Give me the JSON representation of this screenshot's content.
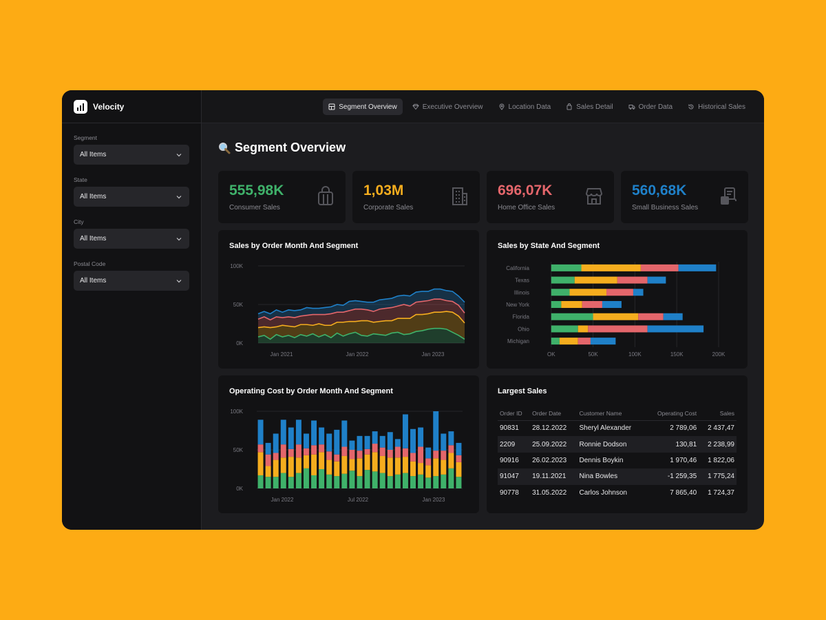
{
  "app": {
    "name": "Velocity"
  },
  "sidebar": {
    "filters": [
      {
        "label": "Segment",
        "value": "All Items"
      },
      {
        "label": "State",
        "value": "All Items"
      },
      {
        "label": "City",
        "value": "All Items"
      },
      {
        "label": "Postal Code",
        "value": "All Items"
      }
    ]
  },
  "nav": {
    "tabs": [
      {
        "label": "Segment Overview",
        "icon": "layout-icon",
        "active": true
      },
      {
        "label": "Executive Overview",
        "icon": "diamond-icon",
        "active": false
      },
      {
        "label": "Location Data",
        "icon": "map-pin-icon",
        "active": false
      },
      {
        "label": "Sales Detail",
        "icon": "shopping-bag-icon",
        "active": false
      },
      {
        "label": "Order Data",
        "icon": "truck-icon",
        "active": false
      },
      {
        "label": "Historical Sales",
        "icon": "history-icon",
        "active": false
      }
    ]
  },
  "page": {
    "title": "Segment Overview",
    "icon": "magnifier-icon"
  },
  "kpis": [
    {
      "value": "555,98K",
      "label": "Consumer Sales",
      "color": "#3fb16a",
      "icon": "shopping-bag-icon"
    },
    {
      "value": "1,03M",
      "label": "Corporate Sales",
      "color": "#f5ad1e",
      "icon": "building-icon"
    },
    {
      "value": "696,07K",
      "label": "Home Office Sales",
      "color": "#e4666b",
      "icon": "storefront-icon"
    },
    {
      "value": "560,68K",
      "label": "Small Business Sales",
      "color": "#1f80c8",
      "icon": "cash-register-icon"
    }
  ],
  "colors": {
    "consumer": "#3fb16a",
    "corporate": "#f5ad1e",
    "home_office": "#e4666b",
    "small_business": "#1f80c8",
    "axis_text": "#7a7a82",
    "grid": "#26262a"
  },
  "chart_data": [
    {
      "type": "area",
      "title": "Sales by Order Month And Segment",
      "x_ticks": [
        "Jan 2021",
        "Jan 2022",
        "Jan 2023"
      ],
      "y_ticks": [
        "100K",
        "50K",
        "0K"
      ],
      "ylim": [
        0,
        100
      ],
      "stacked": true,
      "series": [
        {
          "color": "#3fb16a",
          "values": [
            8,
            10,
            5,
            11,
            8,
            10,
            7,
            11,
            9,
            12,
            8,
            11,
            7,
            13,
            9,
            12,
            14,
            10,
            9,
            12,
            11,
            10,
            13,
            14,
            11,
            12,
            15,
            16,
            18,
            19,
            19,
            18,
            14,
            10,
            5
          ]
        },
        {
          "color": "#f5ad1e",
          "values": [
            12,
            11,
            15,
            10,
            15,
            12,
            14,
            13,
            15,
            11,
            17,
            12,
            16,
            14,
            18,
            16,
            14,
            19,
            20,
            15,
            17,
            19,
            16,
            18,
            21,
            20,
            22,
            21,
            20,
            21,
            21,
            23,
            26,
            25,
            21
          ]
        },
        {
          "color": "#e4666b",
          "values": [
            11,
            13,
            10,
            13,
            10,
            12,
            12,
            11,
            12,
            14,
            12,
            14,
            15,
            13,
            13,
            14,
            16,
            15,
            14,
            14,
            16,
            16,
            17,
            16,
            18,
            16,
            16,
            17,
            17,
            17,
            17,
            14,
            14,
            14,
            13
          ]
        },
        {
          "color": "#1f80c8",
          "values": [
            7,
            7,
            8,
            9,
            7,
            9,
            9,
            8,
            10,
            8,
            8,
            9,
            9,
            10,
            9,
            12,
            11,
            10,
            10,
            12,
            12,
            12,
            12,
            13,
            12,
            13,
            13,
            13,
            12,
            13,
            13,
            13,
            13,
            12,
            14
          ]
        }
      ]
    },
    {
      "type": "bar",
      "orientation": "horizontal",
      "stacked": true,
      "title": "Sales by State And Segment",
      "categories": [
        "California",
        "Texas",
        "Illinois",
        "New York",
        "Florida",
        "Ohio",
        "Michigan"
      ],
      "x_ticks": [
        "OK",
        "50K",
        "100K",
        "150K",
        "200K"
      ],
      "xlim": [
        -22,
        200
      ],
      "series": [
        {
          "color": "#3fb16a",
          "values": [
            36,
            28,
            22,
            12,
            50,
            32,
            10
          ]
        },
        {
          "color": "#f5ad1e",
          "values": [
            71,
            51,
            44,
            25,
            54,
            12,
            22
          ]
        },
        {
          "color": "#e4666b",
          "values": [
            45,
            36,
            32,
            24,
            30,
            71,
            15
          ]
        },
        {
          "color": "#1f80c8",
          "values": [
            45,
            22,
            12,
            23,
            23,
            67,
            30
          ]
        }
      ]
    },
    {
      "type": "bar",
      "stacked": true,
      "title": "Operating Cost by Order Month And Segment",
      "x_ticks": [
        "Jan 2022",
        "Jul 2022",
        "Jan 2023"
      ],
      "y_ticks": [
        "100K",
        "50K",
        "0K"
      ],
      "ylim": [
        0,
        100
      ],
      "series": [
        {
          "color": "#3fb16a",
          "values": [
            17,
            15,
            15,
            20,
            15,
            20,
            26,
            17,
            25,
            18,
            16,
            19,
            23,
            16,
            24,
            22,
            20,
            16,
            18,
            20,
            16,
            18,
            14,
            16,
            18,
            26,
            15
          ]
        },
        {
          "color": "#f5ad1e",
          "values": [
            30,
            14,
            22,
            20,
            26,
            20,
            17,
            27,
            22,
            19,
            19,
            23,
            15,
            23,
            20,
            25,
            22,
            24,
            22,
            21,
            19,
            15,
            16,
            23,
            19,
            20,
            19
          ]
        },
        {
          "color": "#e4666b",
          "values": [
            10,
            15,
            9,
            17,
            10,
            17,
            9,
            12,
            10,
            11,
            9,
            12,
            12,
            10,
            7,
            11,
            11,
            10,
            14,
            11,
            11,
            21,
            9,
            10,
            12,
            10,
            9
          ]
        },
        {
          "color": "#1f80c8",
          "values": [
            32,
            15,
            25,
            32,
            28,
            32,
            19,
            32,
            22,
            23,
            32,
            34,
            12,
            19,
            17,
            16,
            15,
            23,
            10,
            44,
            31,
            25,
            14,
            51,
            22,
            18,
            16
          ]
        }
      ]
    }
  ],
  "table": {
    "title": "Largest Sales",
    "columns": [
      "Order ID",
      "Order Date",
      "Customer Name",
      "Operating Cost",
      "Sales"
    ],
    "rows": [
      [
        "90831",
        "28.12.2022",
        "Sheryl Alexander",
        "2 789,06",
        "2 437,47"
      ],
      [
        "2209",
        "25.09.2022",
        "Ronnie Dodson",
        "130,81",
        "2 238,99"
      ],
      [
        "90916",
        "26.02.2023",
        "Dennis Boykin",
        "1 970,46",
        "1 822,06"
      ],
      [
        "91047",
        "19.11.2021",
        "Nina Bowles",
        "-1 259,35",
        "1 775,24"
      ],
      [
        "90778",
        "31.05.2022",
        "Carlos Johnson",
        "7 865,40",
        "1 724,37"
      ]
    ]
  }
}
